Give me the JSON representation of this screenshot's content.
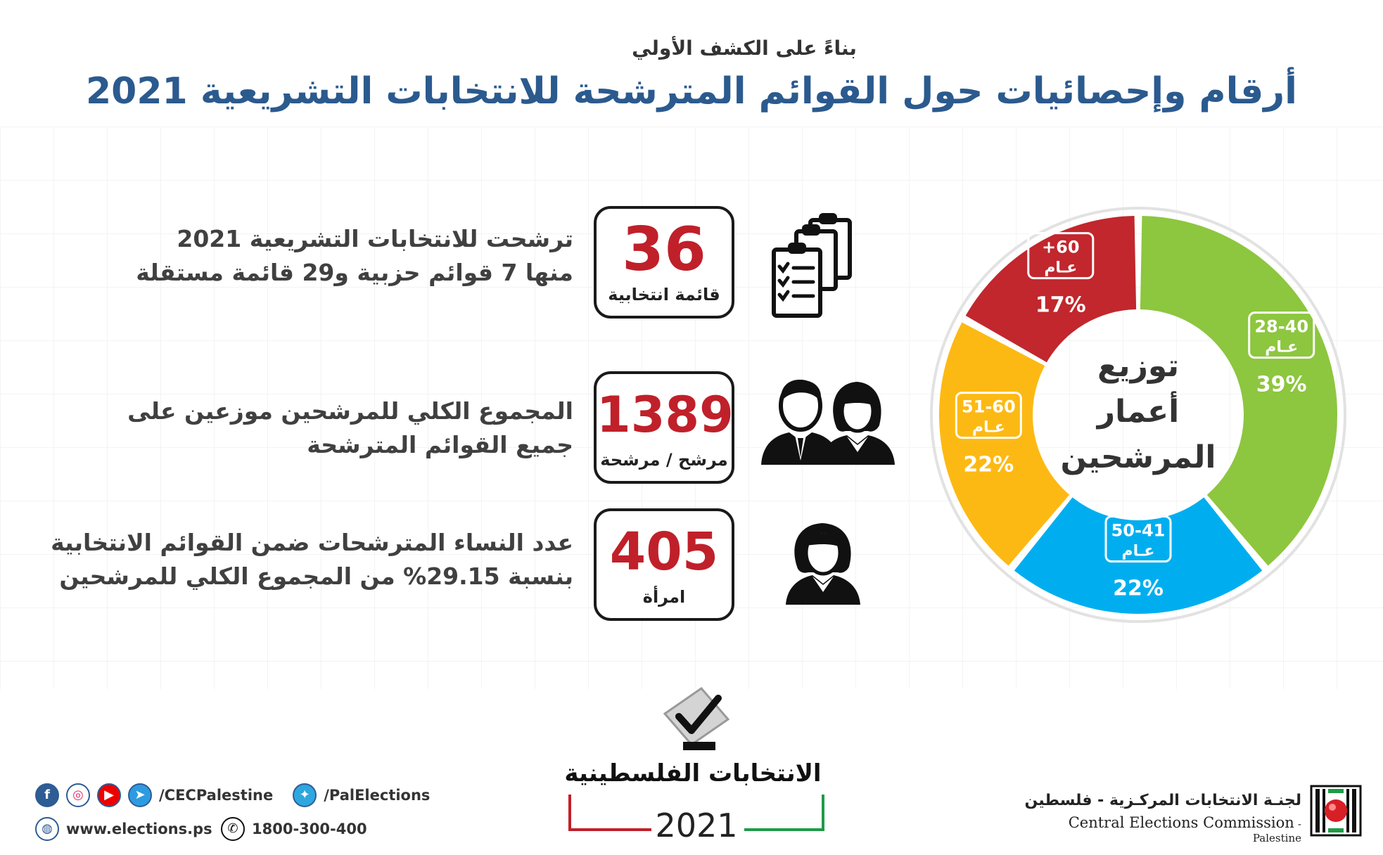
{
  "header": {
    "subtitle": "بناءً على الكشف الأولي",
    "title": "أرقام وإحصائيات حول القوائم المترشحة للانتخابات التشريعية 2021"
  },
  "stats": [
    {
      "line1": "ترشحت للانتخابات التشريعية 2021",
      "line2": "منها 7 قوائم حزبية و29 قائمة مستقلة",
      "number": "36",
      "unit": "قائمة انتخابية",
      "icon": "clipboard-list-icon"
    },
    {
      "line1": "المجموع الكلي للمرشحين موزعين على",
      "line2": "جميع القوائم المترشحة",
      "number": "1389",
      "unit": "مرشح / مرشحة",
      "icon": "man-woman-icon"
    },
    {
      "line1": "عدد النساء المترشحات ضمن القوائم الانتخابية",
      "line2": "بنسبة 29.15% من المجموع الكلي للمرشحين",
      "number": "405",
      "unit": "امرأة",
      "icon": "woman-icon"
    }
  ],
  "chart_data": {
    "type": "pie",
    "title": "توزيع أعمار المرشحين",
    "title_lines": [
      "توزيع",
      "أعمار",
      "المرشحين"
    ],
    "categories": [
      "28-40 عام",
      "50-41 عام",
      "51-60 عام",
      "+60 عام"
    ],
    "series": [
      {
        "values": [
          39,
          22,
          22,
          17
        ],
        "labels": [
          "39%",
          "22%",
          "22%",
          "17%"
        ]
      }
    ],
    "slices": [
      {
        "range": "28-40",
        "unit": "عـام",
        "value": 39,
        "label": "39%",
        "color": "#8dc63f"
      },
      {
        "range": "50-41",
        "unit": "عـام",
        "value": 22,
        "label": "22%",
        "color": "#00aeef"
      },
      {
        "range": "51-60",
        "unit": "عـام",
        "value": 22,
        "label": "22%",
        "color": "#fdb913"
      },
      {
        "range": "+60",
        "unit": "عـام",
        "value": 17,
        "label": "17%",
        "color": "#c1272d"
      }
    ],
    "donut": true
  },
  "ballot": {
    "title": "الانتخابات الفلسطينية",
    "year": "2021"
  },
  "footer": {
    "social_handle_1": "/CECPalestine",
    "social_handle_2": "/PalElections",
    "website": "www.elections.ps",
    "phone": "1800-300-400",
    "org_ar": "لجنـة الانتخابات المركـزية - فلسطين",
    "org_en": "Central Elections Commission",
    "org_en_suffix": "- Palestine"
  },
  "colors": {
    "title_blue": "#2b5a8e",
    "stat_red": "#c0202a",
    "social_blue": "#2e5c94"
  }
}
